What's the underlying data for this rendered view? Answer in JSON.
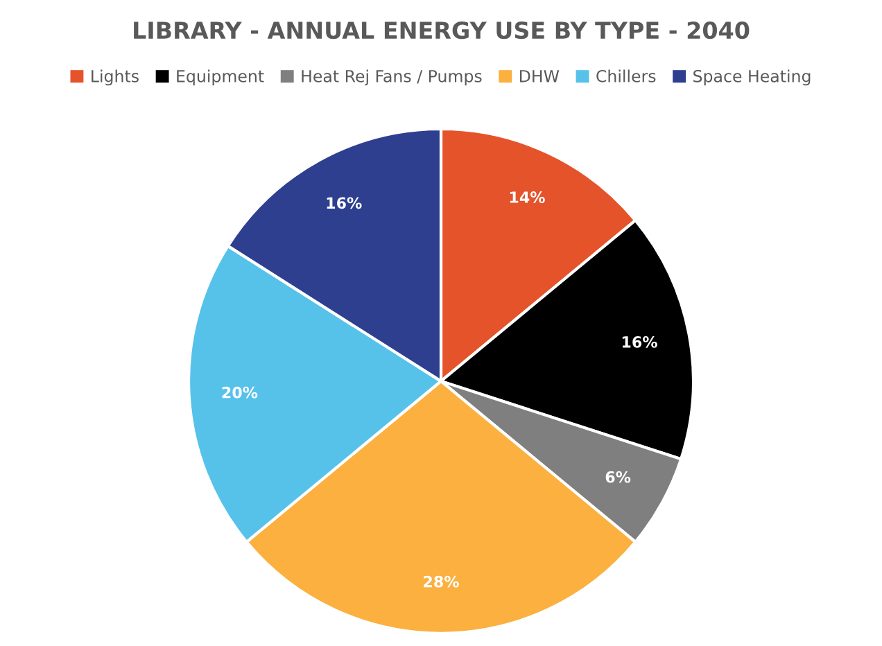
{
  "chart_data": {
    "type": "pie",
    "title": "LIBRARY - ANNUAL ENERGY USE BY TYPE - 2040",
    "categories": [
      "Lights",
      "Equipment",
      "Heat Rej Fans / Pumps",
      "DHW",
      "Chillers",
      "Space Heating"
    ],
    "values": [
      14,
      16,
      6,
      28,
      20,
      16
    ],
    "colors": [
      "#e5532b",
      "#000000",
      "#7f7f7f",
      "#fbb040",
      "#56c2ea",
      "#2e3f8f"
    ],
    "value_labels": [
      "14%",
      "16%",
      "6%",
      "28%",
      "20%",
      "16%"
    ],
    "legend": "top"
  }
}
